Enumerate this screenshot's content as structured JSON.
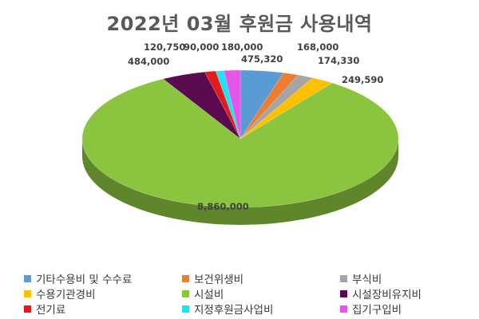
{
  "chart_data": {
    "type": "pie",
    "title": "2022년 03월 후원금 사용내역",
    "categories": [
      "기타수용비 및 수수료",
      "보건위생비",
      "부식비",
      "수용기관경비",
      "시설비",
      "시설장비유지비",
      "전기료",
      "지정후원금사업비",
      "집기구입비"
    ],
    "values": [
      475320,
      168000,
      174330,
      249590,
      8860000,
      484000,
      120750,
      90000,
      180000
    ],
    "data_labels": [
      "475,320",
      "168,000",
      "174,330",
      "249,590",
      "8,860,000",
      "484,000",
      "120,750",
      "90,000",
      "180,000"
    ],
    "colors": [
      "#5B9BD5",
      "#ED7D31",
      "#A5A5A5",
      "#FFC000",
      "#8BC53F",
      "#5A0A4E",
      "#E51B1B",
      "#1FE4F0",
      "#E356E8"
    ],
    "legend_position": "bottom",
    "style": "3d-pie"
  }
}
